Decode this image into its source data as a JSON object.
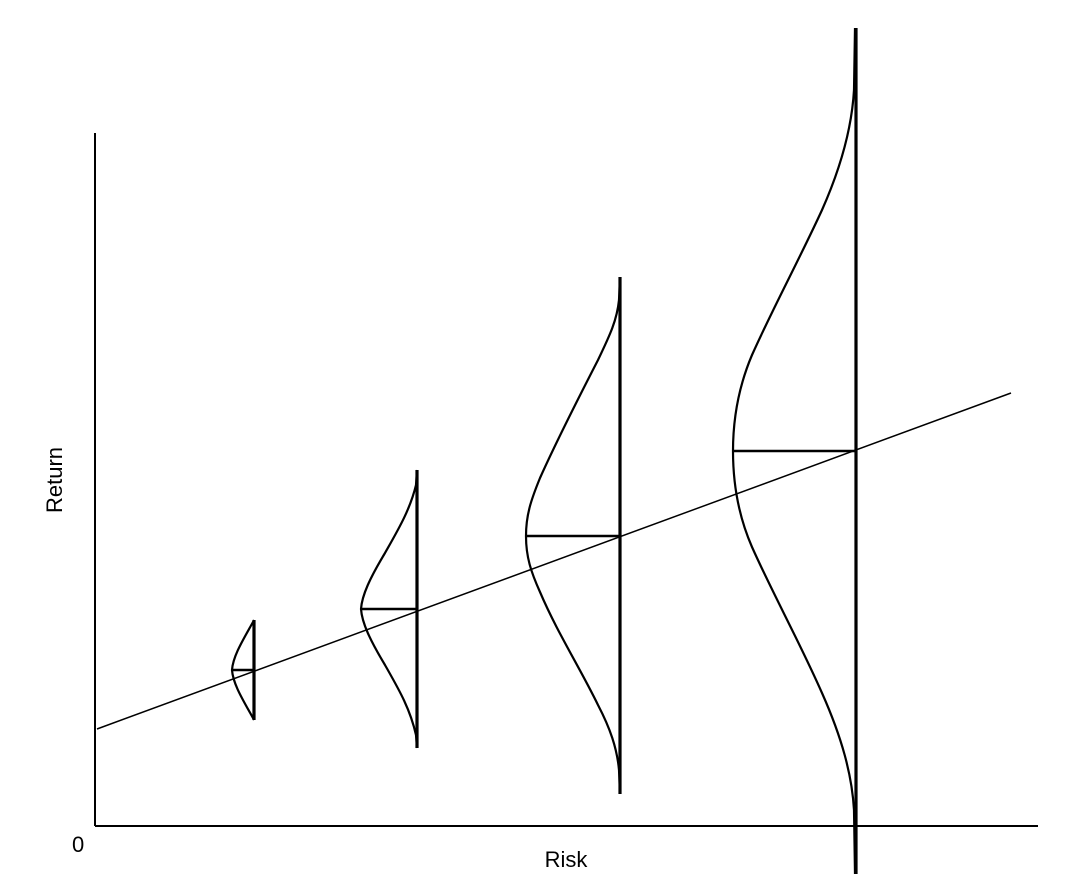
{
  "diagram": {
    "x_axis_label": "Risk",
    "y_axis_label": "Return",
    "origin_label": "0"
  },
  "distributions": [
    {
      "name": "distribution-1"
    },
    {
      "name": "distribution-2"
    },
    {
      "name": "distribution-3"
    },
    {
      "name": "distribution-4"
    }
  ]
}
